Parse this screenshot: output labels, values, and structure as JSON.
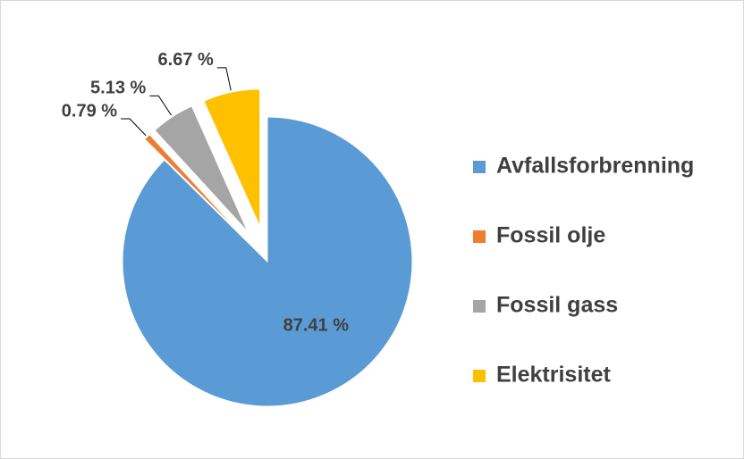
{
  "chart_data": {
    "type": "pie",
    "categories": [
      "Avfallsforbrenning",
      "Fossil olje",
      "Fossil gass",
      "Elektrisitet"
    ],
    "values": [
      87.41,
      0.79,
      5.13,
      6.67
    ],
    "value_labels": [
      "87.41 %",
      "0.79 %",
      "5.13 %",
      "6.67 %"
    ],
    "colors": [
      "#5b9bd5",
      "#ed7d31",
      "#a5a5a5",
      "#ffc000"
    ],
    "exploded": [
      false,
      true,
      true,
      true
    ],
    "legend": "right"
  }
}
